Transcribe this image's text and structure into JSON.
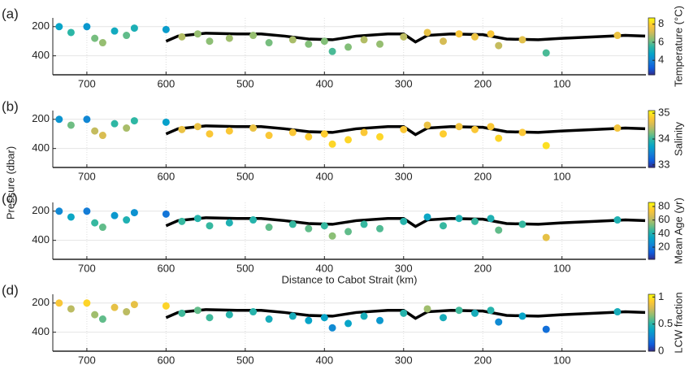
{
  "y_label": "Pressure (dbar)",
  "chart_data": [
    {
      "type": "scatter",
      "panel_label": "(a)",
      "colorbar_label": "Temperature (°C)",
      "xlim": [
        743,
        -6
      ],
      "ylim": [
        140,
        530
      ],
      "xticks": [
        700,
        600,
        500,
        400,
        300,
        200,
        100
      ],
      "yticks": [
        200,
        400
      ],
      "clim": [
        2.4,
        8.7
      ],
      "cticks": [
        4,
        6,
        8
      ],
      "colormap": [
        "#352a87",
        "#0f5cdd",
        "#1481d6",
        "#06a4ca",
        "#2eb7a4",
        "#87bf77",
        "#d1bb59",
        "#fec832",
        "#f9fb0e"
      ],
      "x": [
        735,
        720,
        700,
        690,
        680,
        665,
        650,
        640,
        600,
        580,
        560,
        545,
        520,
        490,
        470,
        440,
        420,
        400,
        390,
        370,
        350,
        330,
        300,
        270,
        250,
        230,
        210,
        190,
        180,
        150,
        120,
        30
      ],
      "values": [
        200,
        240,
        200,
        280,
        310,
        230,
        260,
        210,
        220,
        270,
        250,
        300,
        280,
        260,
        310,
        290,
        320,
        300,
        370,
        340,
        290,
        320,
        270,
        240,
        300,
        250,
        270,
        250,
        330,
        290,
        380,
        260
      ],
      "color_values": [
        4.8,
        5.5,
        4.5,
        6.2,
        6.5,
        5,
        6,
        5.2,
        4.6,
        6.8,
        6.5,
        6.4,
        6.6,
        6.5,
        6.2,
        6.7,
        6.3,
        6.3,
        5.8,
        6.3,
        6.8,
        6.5,
        6.9,
        7.5,
        7.2,
        7.8,
        7.6,
        7.8,
        7,
        7.4,
        5.8,
        7.6
      ],
      "line": {
        "color": "#000000",
        "x": [
          600,
          585,
          550,
          510,
          480,
          450,
          420,
          390,
          360,
          320,
          300,
          285,
          270,
          240,
          200,
          170,
          130,
          100,
          60,
          20,
          -5
        ],
        "values": [
          300,
          265,
          245,
          250,
          250,
          265,
          285,
          290,
          265,
          250,
          250,
          305,
          260,
          250,
          255,
          285,
          290,
          280,
          270,
          260,
          265
        ]
      }
    },
    {
      "type": "scatter",
      "panel_label": "(b)",
      "colorbar_label": "Salinity",
      "xlim": [
        743,
        -6
      ],
      "ylim": [
        140,
        530
      ],
      "xticks": [
        700,
        600,
        500,
        400,
        300,
        200,
        100
      ],
      "yticks": [
        200,
        400
      ],
      "clim": [
        32.9,
        35.1
      ],
      "cticks": [
        33,
        34,
        35
      ],
      "colormap": [
        "#352a87",
        "#0f5cdd",
        "#1481d6",
        "#06a4ca",
        "#2eb7a4",
        "#87bf77",
        "#d1bb59",
        "#fec832",
        "#f9fb0e"
      ],
      "x": [
        735,
        720,
        700,
        690,
        680,
        665,
        650,
        640,
        600,
        580,
        560,
        545,
        520,
        490,
        470,
        440,
        420,
        400,
        390,
        370,
        350,
        330,
        300,
        270,
        250,
        230,
        210,
        190,
        180,
        150,
        120,
        30
      ],
      "values": [
        200,
        240,
        200,
        280,
        310,
        230,
        260,
        210,
        220,
        270,
        250,
        300,
        280,
        260,
        310,
        290,
        320,
        300,
        370,
        340,
        290,
        320,
        270,
        240,
        300,
        250,
        270,
        250,
        330,
        290,
        380,
        260
      ],
      "color_values": [
        33.6,
        34.2,
        33.5,
        34.5,
        34.6,
        34,
        34.4,
        34,
        33.7,
        34.7,
        34.7,
        34.8,
        34.8,
        34.7,
        34.8,
        34.8,
        34.85,
        34.85,
        34.9,
        34.9,
        34.8,
        34.9,
        34.8,
        34.7,
        34.85,
        34.75,
        34.8,
        34.8,
        34.9,
        34.8,
        34.95,
        34.75
      ],
      "line": {
        "color": "#000000",
        "x": [
          600,
          585,
          550,
          510,
          480,
          450,
          420,
          390,
          360,
          320,
          300,
          285,
          270,
          240,
          200,
          170,
          130,
          100,
          60,
          20,
          -5
        ],
        "values": [
          300,
          265,
          245,
          250,
          250,
          265,
          285,
          290,
          265,
          250,
          250,
          305,
          260,
          250,
          255,
          285,
          290,
          280,
          270,
          260,
          265
        ]
      }
    },
    {
      "type": "scatter",
      "panel_label": "(c)",
      "colorbar_label": "Mean Age (yr)",
      "x_label": "Distance to Cabot Strait (km)",
      "xlim": [
        743,
        -6
      ],
      "ylim": [
        140,
        530
      ],
      "xticks": [
        700,
        600,
        500,
        400,
        300,
        200,
        100
      ],
      "yticks": [
        200,
        400
      ],
      "clim": [
        2,
        86
      ],
      "cticks": [
        20,
        40,
        60,
        80
      ],
      "colormap": [
        "#352a87",
        "#0f5cdd",
        "#1481d6",
        "#06a4ca",
        "#2eb7a4",
        "#87bf77",
        "#d1bb59",
        "#fec832",
        "#f9fb0e"
      ],
      "x": [
        735,
        720,
        700,
        690,
        680,
        665,
        650,
        640,
        600,
        580,
        560,
        545,
        520,
        490,
        470,
        440,
        420,
        400,
        390,
        370,
        350,
        330,
        300,
        270,
        250,
        230,
        210,
        190,
        180,
        150,
        120,
        30
      ],
      "values": [
        200,
        240,
        200,
        280,
        310,
        230,
        260,
        210,
        220,
        270,
        250,
        300,
        280,
        260,
        310,
        290,
        320,
        300,
        370,
        340,
        290,
        320,
        270,
        240,
        300,
        250,
        270,
        250,
        330,
        290,
        380,
        260
      ],
      "color_values": [
        25,
        35,
        22,
        45,
        50,
        30,
        40,
        28,
        20,
        45,
        42,
        45,
        40,
        42,
        50,
        45,
        50,
        45,
        55,
        50,
        45,
        48,
        42,
        35,
        45,
        40,
        45,
        40,
        50,
        45,
        70,
        40
      ],
      "line": {
        "color": "#000000",
        "x": [
          600,
          585,
          550,
          510,
          480,
          450,
          420,
          390,
          360,
          320,
          300,
          285,
          270,
          240,
          200,
          170,
          130,
          100,
          60,
          20,
          -5
        ],
        "values": [
          300,
          265,
          245,
          250,
          250,
          265,
          285,
          290,
          265,
          250,
          250,
          305,
          260,
          250,
          255,
          285,
          290,
          280,
          270,
          260,
          265
        ]
      }
    },
    {
      "type": "scatter",
      "panel_label": "(d)",
      "colorbar_label": "LCW fraction",
      "xlim": [
        743,
        -6
      ],
      "ylim": [
        140,
        530
      ],
      "xticks": [
        700,
        600,
        500,
        400,
        300,
        200,
        100
      ],
      "yticks": [
        200,
        400
      ],
      "clim": [
        0,
        1.05
      ],
      "cticks": [
        0,
        0.5,
        1
      ],
      "colormap": [
        "#352a87",
        "#0f5cdd",
        "#1481d6",
        "#06a4ca",
        "#2eb7a4",
        "#87bf77",
        "#d1bb59",
        "#fec832",
        "#f9fb0e"
      ],
      "x": [
        735,
        720,
        700,
        690,
        680,
        665,
        650,
        640,
        600,
        580,
        560,
        545,
        520,
        490,
        470,
        440,
        420,
        400,
        390,
        370,
        350,
        330,
        300,
        270,
        250,
        230,
        210,
        190,
        180,
        150,
        120,
        30
      ],
      "values": [
        200,
        240,
        200,
        280,
        310,
        230,
        260,
        210,
        220,
        270,
        250,
        300,
        280,
        260,
        310,
        290,
        320,
        300,
        370,
        340,
        290,
        320,
        270,
        240,
        300,
        250,
        270,
        250,
        330,
        290,
        380,
        260
      ],
      "color_values": [
        0.9,
        0.75,
        0.95,
        0.7,
        0.6,
        0.85,
        0.75,
        0.85,
        0.95,
        0.55,
        0.6,
        0.55,
        0.5,
        0.5,
        0.45,
        0.45,
        0.4,
        0.4,
        0.3,
        0.4,
        0.45,
        0.35,
        0.5,
        0.7,
        0.45,
        0.55,
        0.45,
        0.5,
        0.3,
        0.4,
        0.2,
        0.45
      ],
      "line": {
        "color": "#000000",
        "x": [
          600,
          585,
          550,
          510,
          480,
          450,
          420,
          390,
          360,
          320,
          300,
          285,
          270,
          240,
          200,
          170,
          130,
          100,
          60,
          20,
          -5
        ],
        "values": [
          300,
          265,
          245,
          250,
          250,
          265,
          285,
          290,
          265,
          250,
          250,
          305,
          260,
          250,
          255,
          285,
          290,
          280,
          270,
          260,
          265
        ]
      }
    }
  ]
}
